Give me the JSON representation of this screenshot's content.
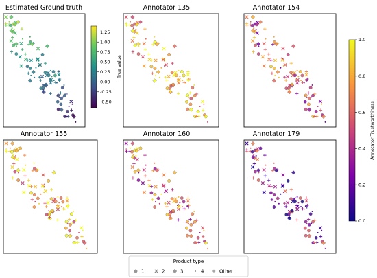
{
  "chart_data": [
    {
      "type": "scatter",
      "title": "Estimated Ground truth",
      "color_by": "true_value",
      "colorbar": {
        "label": "True value",
        "ticks": [
          "1.25",
          "1.00",
          "0.75",
          "0.50",
          "0.25",
          "0.00",
          "-0.25",
          "-0.50"
        ],
        "range": [
          -0.65,
          1.4
        ],
        "colormap": "viridis"
      }
    },
    {
      "type": "scatter",
      "title": "Annotator 135",
      "color_by": "annotator_trustworthiness",
      "trust_mean": 0.85
    },
    {
      "type": "scatter",
      "title": "Annotator 154",
      "color_by": "annotator_trustworthiness",
      "trust_mean": 0.55
    },
    {
      "type": "scatter",
      "title": "Annotator 155",
      "color_by": "annotator_trustworthiness",
      "trust_mean": 0.82
    },
    {
      "type": "scatter",
      "title": "Annotator 160",
      "color_by": "annotator_trustworthiness",
      "trust_mean": 0.6
    },
    {
      "type": "scatter",
      "title": "Annotator 179",
      "color_by": "annotator_trustworthiness",
      "trust_mean": 0.35
    }
  ],
  "trust_colorbar": {
    "label": "Annotator Trustworthiness",
    "ticks": [
      "1.0",
      "0.8",
      "0.6",
      "0.4",
      "0.2",
      "0.0"
    ],
    "range": [
      0.0,
      1.0
    ],
    "colormap": "plasma"
  },
  "legend": {
    "title": "Product type",
    "placement": "bottom-center",
    "entries": [
      {
        "label": "1",
        "marker": "circle"
      },
      {
        "label": "2",
        "marker": "x"
      },
      {
        "label": "3",
        "marker": "diamond"
      },
      {
        "label": "4",
        "marker": "point"
      },
      {
        "label": "Other",
        "marker": "plus"
      }
    ]
  },
  "colors": {
    "marker_edge": "#555555",
    "axes": "#000000"
  }
}
